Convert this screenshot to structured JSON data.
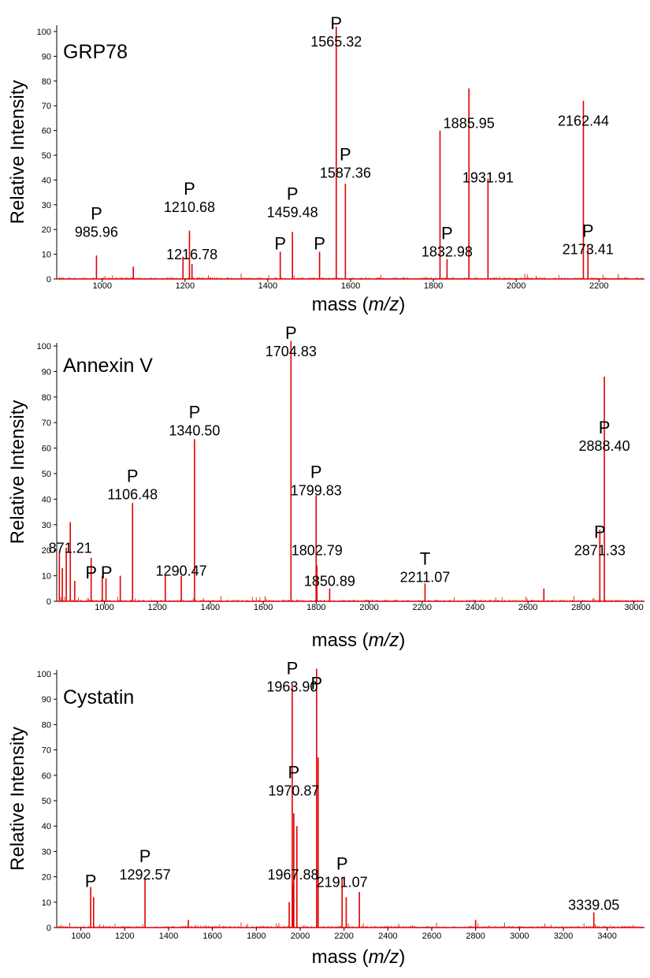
{
  "chart_data": [
    {
      "type": "bar",
      "title": "GRP78",
      "ylabel": "Relative Intensity",
      "xlabel_prefix": "mass (",
      "xlabel_italic": "m/z",
      "xlabel_suffix": ")",
      "xlim": [
        890,
        2310
      ],
      "ylim": [
        0,
        100
      ],
      "color": "#e00000",
      "xticks": [
        1000,
        1200,
        1400,
        1600,
        1800,
        2000,
        2200
      ],
      "yticks": [
        0,
        10,
        20,
        30,
        40,
        50,
        60,
        70,
        80,
        90,
        100
      ],
      "peaks": [
        {
          "x": 985.96,
          "y": 9.5
        },
        {
          "x": 1075,
          "y": 5
        },
        {
          "x": 1195,
          "y": 9
        },
        {
          "x": 1210.68,
          "y": 19.5
        },
        {
          "x": 1216.78,
          "y": 6
        },
        {
          "x": 1430,
          "y": 11
        },
        {
          "x": 1459.48,
          "y": 19
        },
        {
          "x": 1525,
          "y": 11
        },
        {
          "x": 1565.32,
          "y": 102
        },
        {
          "x": 1587.36,
          "y": 38.5
        },
        {
          "x": 1816,
          "y": 60
        },
        {
          "x": 1832.98,
          "y": 8
        },
        {
          "x": 1885.95,
          "y": 77
        },
        {
          "x": 1931.91,
          "y": 40.5
        },
        {
          "x": 2162.44,
          "y": 72
        },
        {
          "x": 2173.41,
          "y": 14
        }
      ],
      "annotations": [
        {
          "x": 985.96,
          "y": 17,
          "p": "P",
          "label": "985.96"
        },
        {
          "x": 1210.68,
          "y": 27,
          "p": "P",
          "label": "1210.68"
        },
        {
          "x": 1216.78,
          "y": 8,
          "p": "",
          "label": "1216.78"
        },
        {
          "x": 1459.48,
          "y": 25,
          "p": "P",
          "label": "1459.48"
        },
        {
          "x": 1430,
          "y": 12,
          "p": "P",
          "label": ""
        },
        {
          "x": 1525,
          "y": 12,
          "p": "P",
          "label": ""
        },
        {
          "x": 1565.32,
          "y": 94,
          "p": "P",
          "label": "1565.32"
        },
        {
          "x": 1587.36,
          "y": 41,
          "p": "P",
          "label": "1587.36"
        },
        {
          "x": 1832.98,
          "y": 9,
          "p": "P",
          "label": "1832.98"
        },
        {
          "x": 1885.95,
          "y": 61,
          "p": "",
          "label": "1885.95"
        },
        {
          "x": 1931.91,
          "y": 39,
          "p": "",
          "label": "1931.91"
        },
        {
          "x": 2162.44,
          "y": 62,
          "p": "",
          "label": "2162.44"
        },
        {
          "x": 2173.41,
          "y": 10,
          "p": "P",
          "label": "2173.41"
        }
      ]
    },
    {
      "type": "bar",
      "title": "Annexin V",
      "ylabel": "Relative Intensity",
      "xlabel_prefix": "mass (",
      "xlabel_italic": "m/z",
      "xlabel_suffix": ")",
      "xlim": [
        820,
        3040
      ],
      "ylim": [
        0,
        100
      ],
      "color": "#e00000",
      "xticks": [
        1000,
        1200,
        1400,
        1600,
        1800,
        2000,
        2200,
        2400,
        2600,
        2800,
        3000
      ],
      "yticks": [
        0,
        10,
        20,
        30,
        40,
        50,
        60,
        70,
        80,
        90,
        100
      ],
      "peaks": [
        {
          "x": 830,
          "y": 19
        },
        {
          "x": 841,
          "y": 13
        },
        {
          "x": 856,
          "y": 21
        },
        {
          "x": 871.21,
          "y": 31
        },
        {
          "x": 888,
          "y": 8
        },
        {
          "x": 950,
          "y": 17
        },
        {
          "x": 992,
          "y": 10
        },
        {
          "x": 1006,
          "y": 9
        },
        {
          "x": 1060,
          "y": 10
        },
        {
          "x": 1106.48,
          "y": 38.5
        },
        {
          "x": 1230,
          "y": 10
        },
        {
          "x": 1290.47,
          "y": 10
        },
        {
          "x": 1340.5,
          "y": 63.5
        },
        {
          "x": 1704.83,
          "y": 102
        },
        {
          "x": 1799.83,
          "y": 41.5
        },
        {
          "x": 1802.79,
          "y": 14
        },
        {
          "x": 1850.89,
          "y": 5
        },
        {
          "x": 2211.07,
          "y": 7
        },
        {
          "x": 2660,
          "y": 5
        },
        {
          "x": 2871.33,
          "y": 28
        },
        {
          "x": 2888.4,
          "y": 88
        }
      ],
      "annotations": [
        {
          "x": 871.21,
          "y": 19,
          "p": "",
          "label": "871.21"
        },
        {
          "x": 950,
          "y": 9,
          "p": "P",
          "label": ""
        },
        {
          "x": 1008,
          "y": 9,
          "p": "P",
          "label": ""
        },
        {
          "x": 1106.48,
          "y": 40,
          "p": "P",
          "label": "1106.48"
        },
        {
          "x": 1290.47,
          "y": 10,
          "p": "",
          "label": "1290.47"
        },
        {
          "x": 1340.5,
          "y": 65,
          "p": "P",
          "label": "1340.50"
        },
        {
          "x": 1704.83,
          "y": 96,
          "p": "P",
          "label": "1704.83"
        },
        {
          "x": 1799.83,
          "y": 41.5,
          "p": "P",
          "label": "1799.83"
        },
        {
          "x": 1802.79,
          "y": 18,
          "p": "",
          "label": "1802.79"
        },
        {
          "x": 1850.89,
          "y": 6,
          "p": "",
          "label": "1850.89"
        },
        {
          "x": 2211.07,
          "y": 7.5,
          "p": "T",
          "label": "2211.07"
        },
        {
          "x": 2871.33,
          "y": 18,
          "p": "P",
          "label": "2871.33"
        },
        {
          "x": 2888.4,
          "y": 59,
          "p": "P",
          "label": "2888.40"
        }
      ]
    },
    {
      "type": "bar",
      "title": "Cystatin",
      "ylabel": "Relative Intensity",
      "xlabel_prefix": "mass (",
      "xlabel_italic": "m/z",
      "xlabel_suffix": ")",
      "xlim": [
        890,
        3570
      ],
      "ylim": [
        0,
        100
      ],
      "color": "#e00000",
      "xticks": [
        1000,
        1200,
        1400,
        1600,
        1800,
        2000,
        2200,
        2400,
        2600,
        2800,
        3000,
        3200,
        3400
      ],
      "yticks": [
        0,
        10,
        20,
        30,
        40,
        50,
        60,
        70,
        80,
        90,
        100
      ],
      "peaks": [
        {
          "x": 1045,
          "y": 16
        },
        {
          "x": 1058,
          "y": 12
        },
        {
          "x": 1292.57,
          "y": 19
        },
        {
          "x": 1490,
          "y": 3
        },
        {
          "x": 1950,
          "y": 10
        },
        {
          "x": 1963.9,
          "y": 96
        },
        {
          "x": 1967.88,
          "y": 17
        },
        {
          "x": 1970.87,
          "y": 45
        },
        {
          "x": 1985,
          "y": 40
        },
        {
          "x": 2075,
          "y": 102
        },
        {
          "x": 2082,
          "y": 67
        },
        {
          "x": 2191.07,
          "y": 20
        },
        {
          "x": 2210,
          "y": 12
        },
        {
          "x": 2270,
          "y": 14
        },
        {
          "x": 2800,
          "y": 3
        },
        {
          "x": 3339.05,
          "y": 6
        }
      ],
      "annotations": [
        {
          "x": 1045,
          "y": 16,
          "p": "P",
          "label": ""
        },
        {
          "x": 1292.57,
          "y": 19,
          "p": "P",
          "label": "1292.57"
        },
        {
          "x": 1963.9,
          "y": 93,
          "p": "P",
          "label": "1963.90"
        },
        {
          "x": 2075,
          "y": 94,
          "p": "P",
          "label": ""
        },
        {
          "x": 1970.87,
          "y": 52,
          "p": "P",
          "label": "1970.87"
        },
        {
          "x": 1967.88,
          "y": 19,
          "p": "",
          "label": "1967.88"
        },
        {
          "x": 2191.07,
          "y": 16,
          "p": "P",
          "label": "2191.07"
        },
        {
          "x": 3339.05,
          "y": 7,
          "p": "",
          "label": "3339.05"
        }
      ]
    }
  ]
}
